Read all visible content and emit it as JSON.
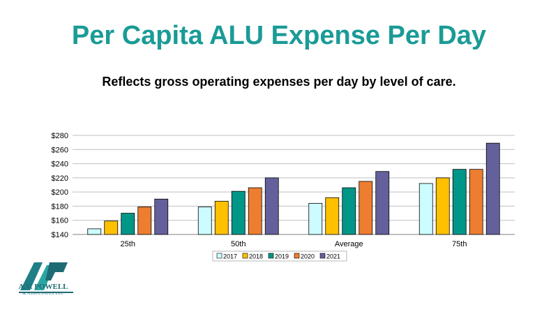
{
  "title": "Per Capita ALU Expense Per Day",
  "subtitle": "Reflects gross operating expenses per day by level of care.",
  "logo": {
    "name": "A.V. POWELL",
    "sub": "& ASSOCIATES LLC",
    "initials": "AVP"
  },
  "colors": {
    "title": "#1a9b96",
    "grid": "#bfbfbf",
    "axis": "#808080"
  },
  "chart_data": {
    "type": "bar",
    "categories": [
      "25th",
      "50th",
      "Average",
      "75th"
    ],
    "series": [
      {
        "name": "2017",
        "color": "#ccfcff",
        "values": [
          148,
          179,
          184,
          212
        ]
      },
      {
        "name": "2018",
        "color": "#ffc000",
        "values": [
          159,
          187,
          192,
          220
        ]
      },
      {
        "name": "2019",
        "color": "#009688",
        "values": [
          170,
          201,
          206,
          232
        ]
      },
      {
        "name": "2020",
        "color": "#ed7d31",
        "values": [
          179,
          206,
          215,
          232
        ]
      },
      {
        "name": "2021",
        "color": "#64609c",
        "values": [
          190,
          220,
          229,
          269
        ]
      }
    ],
    "ylim": [
      140,
      280
    ],
    "yticks": [
      140,
      160,
      180,
      200,
      220,
      240,
      260,
      280
    ],
    "ytick_labels": [
      "$140",
      "$160",
      "$180",
      "$200",
      "$220",
      "$240",
      "$260",
      "$280"
    ],
    "grid": true,
    "legend": "bottom"
  }
}
